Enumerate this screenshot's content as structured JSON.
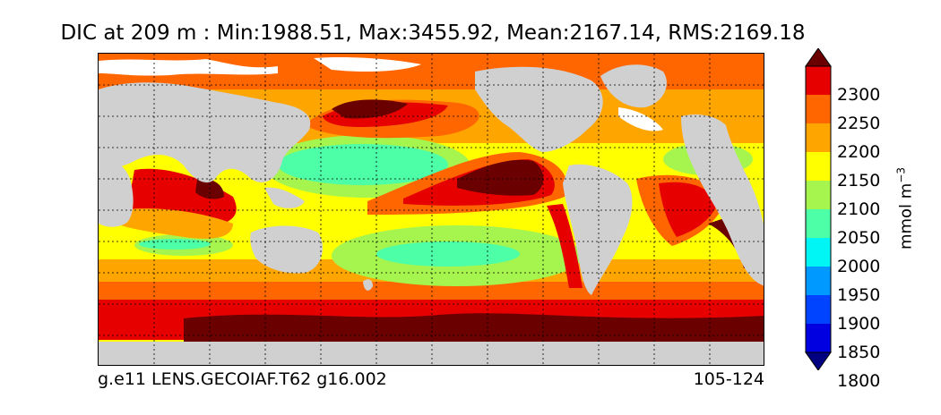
{
  "title": "DIC at 209 m : Min:1988.51, Max:3455.92, Mean:2167.14, RMS:2169.18",
  "footer": {
    "left": "g.e11 LENS.GECOIAF.T62 g16.002",
    "right": "105-124"
  },
  "colorbar": {
    "ticks": [
      "2300",
      "2250",
      "2200",
      "2150",
      "2100",
      "2050",
      "2000",
      "1950",
      "1900",
      "1850",
      "1800"
    ],
    "units_text": "mmol m",
    "units_exp": "−3",
    "colors": [
      "#6b0000",
      "#e60000",
      "#ff6600",
      "#ffa500",
      "#ffff00",
      "#a6f54f",
      "#4dffa6",
      "#00f5f5",
      "#0099ff",
      "#0044ff",
      "#0000e0",
      "#000080"
    ]
  },
  "map": {
    "land_color": "#d0d0d0",
    "grid_lines": "dotted",
    "regions": {
      "polar_south": "#6b0000",
      "southern_ocean": "#e60000",
      "subpolar_south": "#ff6600",
      "transition": "#ffa500",
      "subtropics": "#ffff00",
      "gyre_south": "#a6f54f",
      "gyre_core": "#4dffa6",
      "eastern_pacific": "#6b0000",
      "north_pacific": "#6b0000",
      "arctic": "#ff6600"
    }
  }
}
